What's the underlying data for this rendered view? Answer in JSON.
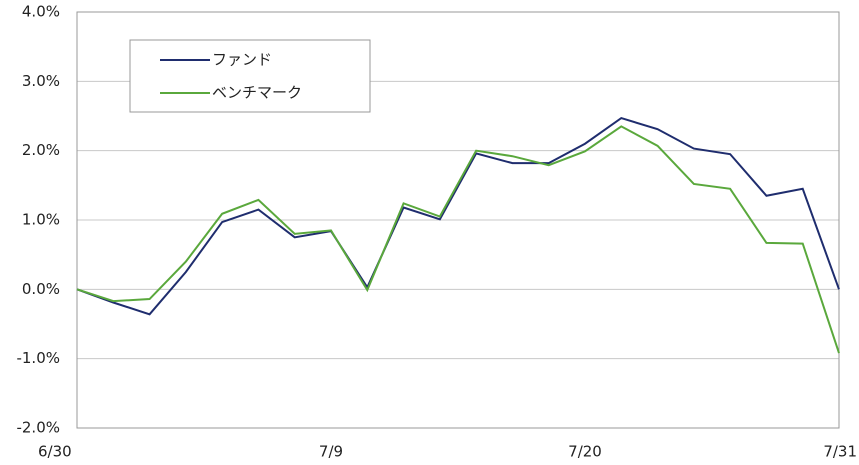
{
  "chart_data": {
    "type": "line",
    "categories": [
      "6/30",
      null,
      null,
      null,
      null,
      null,
      null,
      "7/9",
      null,
      null,
      null,
      null,
      null,
      null,
      "7/20",
      null,
      null,
      null,
      null,
      null,
      null,
      "7/31"
    ],
    "series": [
      {
        "name": "ファンド",
        "color": "#1f2d6e",
        "values": [
          0,
          -0.19,
          -0.36,
          0.25,
          0.97,
          1.15,
          0.75,
          0.84,
          0.03,
          1.18,
          1.01,
          1.96,
          1.82,
          1.82,
          2.1,
          2.47,
          2.31,
          2.03,
          1.95,
          1.35,
          1.45,
          0.0
        ]
      },
      {
        "name": "ベンチマーク",
        "color": "#5aa83c",
        "values": [
          0,
          -0.17,
          -0.14,
          0.4,
          1.09,
          1.29,
          0.8,
          0.85,
          -0.01,
          1.24,
          1.05,
          2.0,
          1.92,
          1.79,
          1.99,
          2.35,
          2.07,
          1.52,
          1.45,
          0.67,
          0.66,
          -0.92
        ]
      }
    ],
    "ylim": [
      -2,
      4
    ],
    "yticks": [
      {
        "value": -2,
        "label": "-2.0%"
      },
      {
        "value": -1,
        "label": "-1.0%"
      },
      {
        "value": 0,
        "label": "0.0%"
      },
      {
        "value": 1,
        "label": "1.0%"
      },
      {
        "value": 2,
        "label": "2.0%"
      },
      {
        "value": 3,
        "label": "3.0%"
      },
      {
        "value": 4,
        "label": "4.0%"
      }
    ],
    "grid": true
  }
}
